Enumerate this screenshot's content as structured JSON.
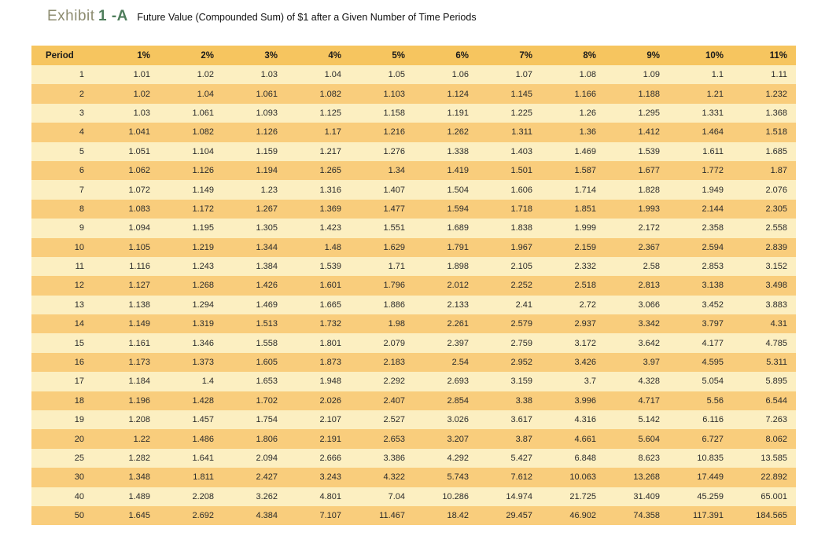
{
  "title": {
    "exhibit_label": "Exhibit",
    "exhibit_code": "1 -A",
    "subtitle": "Future Value (Compounded Sum) of $1 after a Given Number of Time Periods"
  },
  "colors": {
    "header_bg": "#f6c55f",
    "row_light": "#fcefc1",
    "row_dark": "#f9cd7c",
    "exhibit_label_color": "#8d8c70",
    "exhibit_code_color": "#4e7d5b"
  },
  "chart_data": {
    "type": "table",
    "title": "Exhibit 1 -A Future Value (Compounded Sum) of $1 after a Given Number of Time Periods",
    "columns": [
      "Period",
      "1%",
      "2%",
      "3%",
      "4%",
      "5%",
      "6%",
      "7%",
      "8%",
      "9%",
      "10%",
      "11%"
    ],
    "rows": [
      [
        "1",
        "1.01",
        "1.02",
        "1.03",
        "1.04",
        "1.05",
        "1.06",
        "1.07",
        "1.08",
        "1.09",
        "1.1",
        "1.11"
      ],
      [
        "2",
        "1.02",
        "1.04",
        "1.061",
        "1.082",
        "1.103",
        "1.124",
        "1.145",
        "1.166",
        "1.188",
        "1.21",
        "1.232"
      ],
      [
        "3",
        "1.03",
        "1.061",
        "1.093",
        "1.125",
        "1.158",
        "1.191",
        "1.225",
        "1.26",
        "1.295",
        "1.331",
        "1.368"
      ],
      [
        "4",
        "1.041",
        "1.082",
        "1.126",
        "1.17",
        "1.216",
        "1.262",
        "1.311",
        "1.36",
        "1.412",
        "1.464",
        "1.518"
      ],
      [
        "5",
        "1.051",
        "1.104",
        "1.159",
        "1.217",
        "1.276",
        "1.338",
        "1.403",
        "1.469",
        "1.539",
        "1.611",
        "1.685"
      ],
      [
        "6",
        "1.062",
        "1.126",
        "1.194",
        "1.265",
        "1.34",
        "1.419",
        "1.501",
        "1.587",
        "1.677",
        "1.772",
        "1.87"
      ],
      [
        "7",
        "1.072",
        "1.149",
        "1.23",
        "1.316",
        "1.407",
        "1.504",
        "1.606",
        "1.714",
        "1.828",
        "1.949",
        "2.076"
      ],
      [
        "8",
        "1.083",
        "1.172",
        "1.267",
        "1.369",
        "1.477",
        "1.594",
        "1.718",
        "1.851",
        "1.993",
        "2.144",
        "2.305"
      ],
      [
        "9",
        "1.094",
        "1.195",
        "1.305",
        "1.423",
        "1.551",
        "1.689",
        "1.838",
        "1.999",
        "2.172",
        "2.358",
        "2.558"
      ],
      [
        "10",
        "1.105",
        "1.219",
        "1.344",
        "1.48",
        "1.629",
        "1.791",
        "1.967",
        "2.159",
        "2.367",
        "2.594",
        "2.839"
      ],
      [
        "11",
        "1.116",
        "1.243",
        "1.384",
        "1.539",
        "1.71",
        "1.898",
        "2.105",
        "2.332",
        "2.58",
        "2.853",
        "3.152"
      ],
      [
        "12",
        "1.127",
        "1.268",
        "1.426",
        "1.601",
        "1.796",
        "2.012",
        "2.252",
        "2.518",
        "2.813",
        "3.138",
        "3.498"
      ],
      [
        "13",
        "1.138",
        "1.294",
        "1.469",
        "1.665",
        "1.886",
        "2.133",
        "2.41",
        "2.72",
        "3.066",
        "3.452",
        "3.883"
      ],
      [
        "14",
        "1.149",
        "1.319",
        "1.513",
        "1.732",
        "1.98",
        "2.261",
        "2.579",
        "2.937",
        "3.342",
        "3.797",
        "4.31"
      ],
      [
        "15",
        "1.161",
        "1.346",
        "1.558",
        "1.801",
        "2.079",
        "2.397",
        "2.759",
        "3.172",
        "3.642",
        "4.177",
        "4.785"
      ],
      [
        "16",
        "1.173",
        "1.373",
        "1.605",
        "1.873",
        "2.183",
        "2.54",
        "2.952",
        "3.426",
        "3.97",
        "4.595",
        "5.311"
      ],
      [
        "17",
        "1.184",
        "1.4",
        "1.653",
        "1.948",
        "2.292",
        "2.693",
        "3.159",
        "3.7",
        "4.328",
        "5.054",
        "5.895"
      ],
      [
        "18",
        "1.196",
        "1.428",
        "1.702",
        "2.026",
        "2.407",
        "2.854",
        "3.38",
        "3.996",
        "4.717",
        "5.56",
        "6.544"
      ],
      [
        "19",
        "1.208",
        "1.457",
        "1.754",
        "2.107",
        "2.527",
        "3.026",
        "3.617",
        "4.316",
        "5.142",
        "6.116",
        "7.263"
      ],
      [
        "20",
        "1.22",
        "1.486",
        "1.806",
        "2.191",
        "2.653",
        "3.207",
        "3.87",
        "4.661",
        "5.604",
        "6.727",
        "8.062"
      ],
      [
        "25",
        "1.282",
        "1.641",
        "2.094",
        "2.666",
        "3.386",
        "4.292",
        "5.427",
        "6.848",
        "8.623",
        "10.835",
        "13.585"
      ],
      [
        "30",
        "1.348",
        "1.811",
        "2.427",
        "3.243",
        "4.322",
        "5.743",
        "7.612",
        "10.063",
        "13.268",
        "17.449",
        "22.892"
      ],
      [
        "40",
        "1.489",
        "2.208",
        "3.262",
        "4.801",
        "7.04",
        "10.286",
        "14.974",
        "21.725",
        "31.409",
        "45.259",
        "65.001"
      ],
      [
        "50",
        "1.645",
        "2.692",
        "4.384",
        "7.107",
        "11.467",
        "18.42",
        "29.457",
        "46.902",
        "74.358",
        "117.391",
        "184.565"
      ]
    ]
  }
}
